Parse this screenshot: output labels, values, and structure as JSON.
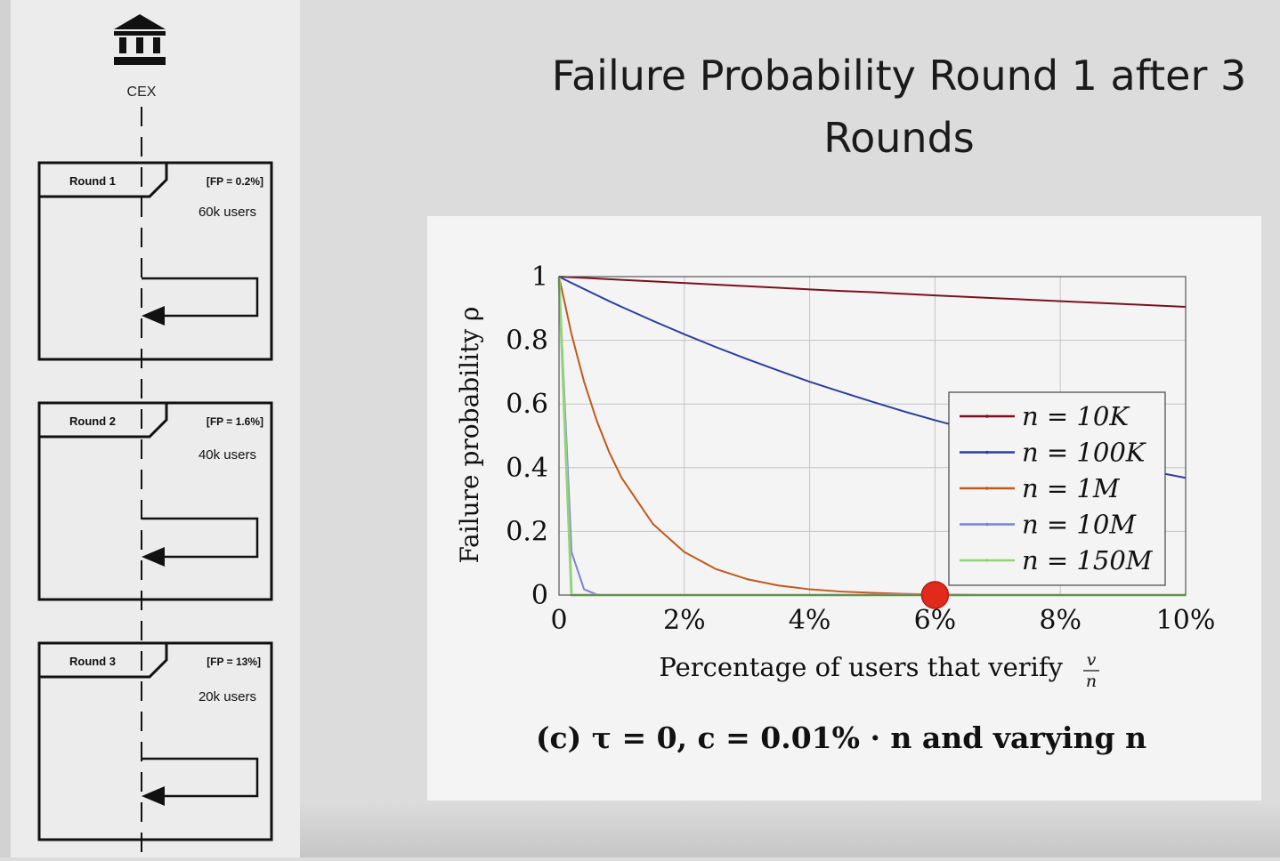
{
  "slide": {
    "title": "Failure Probability Round 1 after 3 Rounds"
  },
  "diagram": {
    "actor_label": "CEX",
    "rounds": [
      {
        "label": "Round 1",
        "fp": "[FP = 0.2%]",
        "users": "60k users"
      },
      {
        "label": "Round 2",
        "fp": "[FP = 1.6%]",
        "users": "40k users"
      },
      {
        "label": "Round 3",
        "fp": "[FP = 13%]",
        "users": "20k users"
      }
    ]
  },
  "chart_data": {
    "type": "line",
    "ylabel": "Failure probability ρ",
    "xlabel": "Percentage of users that verify",
    "xlabel_fraction": {
      "numerator": "v",
      "denominator": "n"
    },
    "caption": "(c) τ = 0, c = 0.01% · n and varying n",
    "xlim": [
      0,
      10
    ],
    "ylim": [
      0,
      1
    ],
    "x_ticks": [
      0,
      2,
      4,
      6,
      8,
      10
    ],
    "x_tick_labels": [
      "0",
      "2%",
      "4%",
      "6%",
      "8%",
      "10%"
    ],
    "y_ticks": [
      0,
      0.2,
      0.4,
      0.6,
      0.8,
      1
    ],
    "y_tick_labels": [
      "0",
      "0.2",
      "0.4",
      "0.6",
      "0.8",
      "1"
    ],
    "grid": true,
    "legend_position": "right",
    "x": [
      0,
      0.2,
      0.4,
      0.6,
      0.8,
      1,
      1.5,
      2,
      2.5,
      3,
      3.5,
      4,
      4.5,
      5,
      5.5,
      6,
      7,
      8,
      9,
      10
    ],
    "series": [
      {
        "name": "n = 10K",
        "color": "#7a1020",
        "values": [
          1,
          0.998,
          0.996,
          0.994,
          0.992,
          0.99,
          0.985,
          0.98,
          0.975,
          0.97,
          0.965,
          0.96,
          0.955,
          0.951,
          0.946,
          0.941,
          0.932,
          0.923,
          0.914,
          0.905
        ]
      },
      {
        "name": "n = 100K",
        "color": "#2c3f9a",
        "values": [
          1,
          0.98,
          0.961,
          0.942,
          0.923,
          0.905,
          0.861,
          0.819,
          0.779,
          0.741,
          0.705,
          0.67,
          0.638,
          0.607,
          0.577,
          0.549,
          0.497,
          0.449,
          0.406,
          0.368
        ]
      },
      {
        "name": "n = 1M",
        "color": "#c05a1c",
        "values": [
          1,
          0.819,
          0.67,
          0.549,
          0.449,
          0.368,
          0.223,
          0.135,
          0.082,
          0.05,
          0.03,
          0.018,
          0.011,
          0.007,
          0.004,
          0.002,
          0.001,
          0,
          0,
          0
        ]
      },
      {
        "name": "n = 10M",
        "color": "#7f82cf",
        "values": [
          1,
          0.135,
          0.018,
          0.002,
          0,
          0,
          0,
          0,
          0,
          0,
          0,
          0,
          0,
          0,
          0,
          0,
          0,
          0,
          0,
          0
        ]
      },
      {
        "name": "n = 150M",
        "color": "#93d37a",
        "values": [
          1,
          0,
          0,
          0,
          0,
          0,
          0,
          0,
          0,
          0,
          0,
          0,
          0,
          0,
          0,
          0,
          0,
          0,
          0,
          0
        ]
      }
    ],
    "highlight_point": {
      "x": 6,
      "y": 0,
      "color": "#e02a1c"
    }
  }
}
